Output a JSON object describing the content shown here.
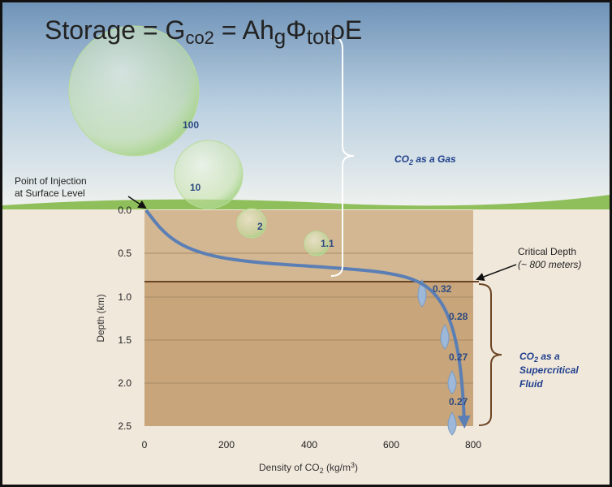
{
  "title": {
    "parts": [
      "Storage = G",
      "co2",
      " = Ah",
      "g",
      "Φ",
      "tot",
      "ρE"
    ]
  },
  "injection_label": [
    "Point of Injection",
    "at Surface Level"
  ],
  "critical_depth_label": [
    "Critical Depth",
    "(~ 800 meters)"
  ],
  "gas_label": [
    "CO",
    "2",
    " as a Gas"
  ],
  "fluid_label": [
    "CO",
    "2",
    " as a",
    "Supercritical",
    "Fluid"
  ],
  "y_axis_title": "Depth (km)",
  "x_axis_title": [
    "Density of CO",
    "2",
    " (kg/m",
    "3",
    ")"
  ],
  "y_ticks": [
    "0.0",
    "0.5",
    "1.0",
    "1.5",
    "2.0",
    "2.5"
  ],
  "x_ticks": [
    "0",
    "200",
    "400",
    "600",
    "800"
  ],
  "bubbles": [
    "100",
    "10",
    "2",
    "1.1"
  ],
  "droplets": [
    "0.32",
    "0.28",
    "0.27",
    "0.27"
  ]
}
